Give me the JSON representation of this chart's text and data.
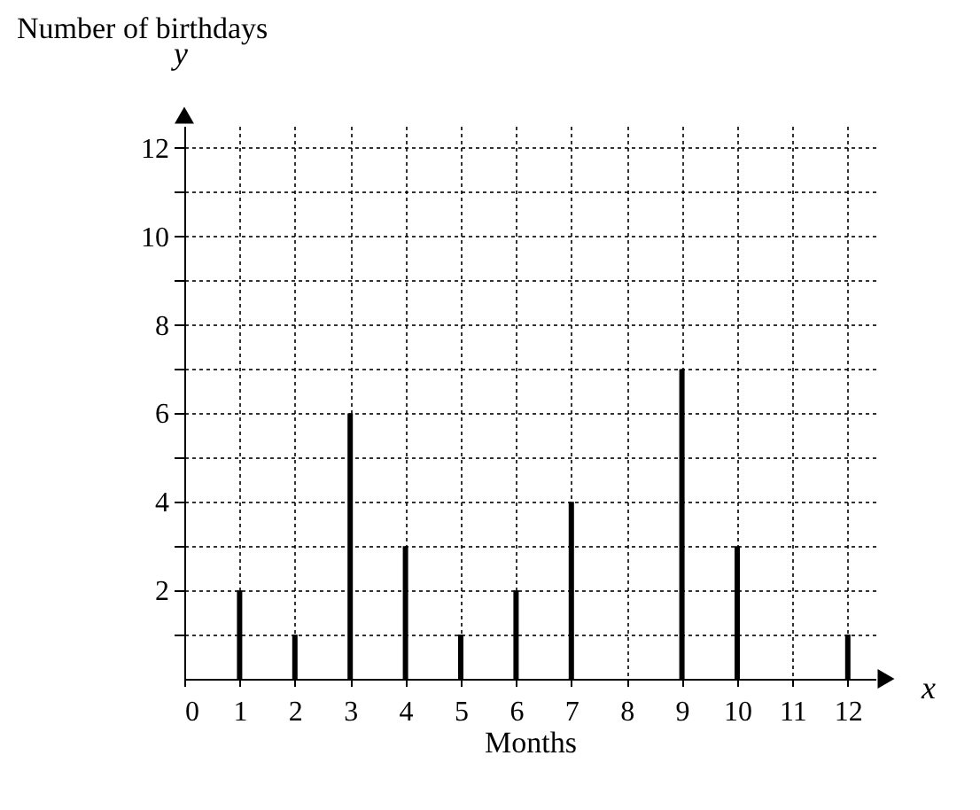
{
  "chart_data": {
    "type": "bar",
    "xlabel": "Months",
    "ylabel": "Number of birthdays",
    "annotations": [
      "y",
      "x"
    ],
    "x": [
      1,
      2,
      3,
      4,
      5,
      6,
      7,
      8,
      9,
      10,
      11,
      12
    ],
    "values": [
      2,
      1,
      6,
      3,
      1,
      2,
      4,
      0,
      7,
      3,
      0,
      1
    ],
    "color": "#000000",
    "xlim": [
      0,
      12.5
    ],
    "xticks": [
      0,
      1,
      2,
      3,
      4,
      5,
      6,
      7,
      8,
      9,
      10,
      11,
      12
    ],
    "ylim": [
      0,
      12.5
    ],
    "yticks": [
      {
        "value": 1,
        "label": null
      },
      2,
      {
        "value": 3,
        "label": null
      },
      4,
      {
        "value": 5,
        "label": null
      },
      6,
      {
        "value": 7,
        "label": null
      },
      8,
      {
        "value": 9,
        "label": null
      },
      10,
      {
        "value": 11,
        "label": null
      },
      12
    ],
    "grid": true
  }
}
